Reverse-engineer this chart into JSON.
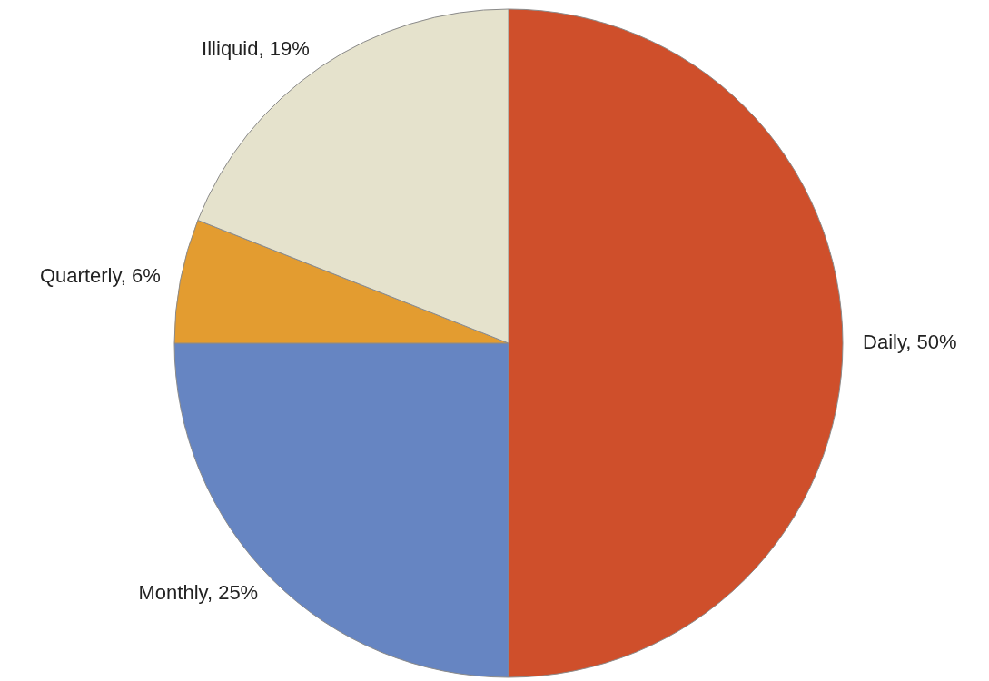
{
  "chart_data": {
    "type": "pie",
    "categories": [
      "Daily",
      "Monthly",
      "Quarterly",
      "Illiquid"
    ],
    "values": [
      50,
      25,
      6,
      19
    ],
    "value_labels": [
      "50%",
      "25%",
      "6%",
      "19%"
    ],
    "colors": [
      "#cf4f2b",
      "#6685c2",
      "#e39c30",
      "#e5e2cc"
    ]
  }
}
